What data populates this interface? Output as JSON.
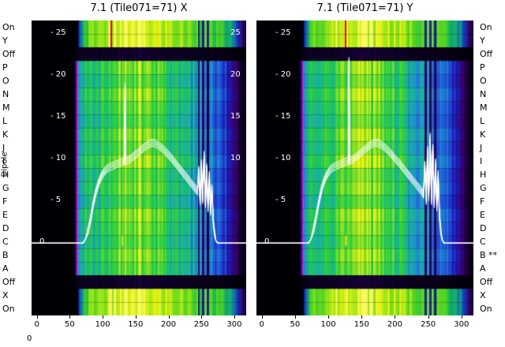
{
  "figure": {
    "background": "#ffffff",
    "left_axis_label": "Dipole",
    "bottom_left_tick": "0",
    "text_color": "#000000",
    "line_color": "#ffffff"
  },
  "row_labels_left": [
    "On",
    "Y",
    "Off",
    "P",
    "O",
    "N",
    "M",
    "L",
    "K",
    "J",
    "I",
    "H",
    "G",
    "F",
    "E",
    "D",
    "C",
    "B",
    "A",
    "Off",
    "X",
    "On"
  ],
  "row_labels_right": [
    "On",
    "Y",
    "Off",
    "P",
    "O",
    "N",
    "M",
    "L",
    "K",
    "J",
    "I",
    "H",
    "G",
    "F",
    "E",
    "D",
    "C",
    "B **",
    "A",
    "Off",
    "X",
    "On"
  ],
  "chart_common": {
    "chan_range": [
      -8,
      318
    ],
    "xticks": [
      0,
      50,
      100,
      150,
      200,
      250,
      300
    ],
    "inner_yticks": [
      25,
      20,
      15,
      10,
      5
    ],
    "right_yticks": [
      25,
      20,
      15,
      10
    ],
    "zero_label": "0",
    "value_axis": {
      "min": 0,
      "max": 25
    },
    "row_kinds": [
      "band",
      "band",
      "off",
      "body",
      "body",
      "body",
      "body",
      "body",
      "body",
      "body",
      "body",
      "body",
      "body",
      "body",
      "body",
      "body",
      "body",
      "body",
      "body",
      "off",
      "band",
      "band"
    ],
    "row_gain": [
      1.02,
      0.94,
      1.06,
      0.98,
      0.92,
      1.04,
      0.97,
      1.08,
      0.95,
      1.0,
      0.9,
      1.05,
      0.99,
      0.93,
      1.03,
      0.96
    ],
    "body_profile": {
      "x": [
        -8,
        56,
        59,
        62,
        66,
        72,
        80,
        90,
        100,
        110,
        120,
        130,
        140,
        150,
        160,
        170,
        180,
        190,
        200,
        210,
        220,
        230,
        240,
        248,
        256,
        262,
        268,
        275,
        282,
        290,
        298,
        306,
        312,
        318
      ],
      "v": [
        0,
        0,
        0.18,
        0.42,
        0.55,
        0.6,
        0.62,
        0.6,
        0.64,
        0.68,
        0.74,
        0.78,
        0.8,
        0.83,
        0.83,
        0.8,
        0.76,
        0.72,
        0.67,
        0.62,
        0.57,
        0.53,
        0.5,
        0.47,
        0.45,
        0.43,
        0.42,
        0.4,
        0.36,
        0.28,
        0.2,
        0.12,
        0.06,
        0.02
      ]
    },
    "band_profile": {
      "x": [
        -8,
        62,
        66,
        72,
        80,
        90,
        100,
        110,
        120,
        130,
        140,
        150,
        160,
        170,
        180,
        190,
        200,
        210,
        220,
        230,
        240,
        250,
        260,
        270,
        280,
        290,
        298,
        306,
        312,
        318
      ],
      "v": [
        0,
        0,
        0.35,
        0.6,
        0.7,
        0.76,
        0.8,
        0.85,
        0.9,
        0.94,
        0.96,
        0.95,
        0.93,
        0.9,
        0.88,
        0.85,
        0.82,
        0.79,
        0.76,
        0.72,
        0.7,
        0.67,
        0.63,
        0.6,
        0.57,
        0.5,
        0.4,
        0.25,
        0.12,
        0.04
      ]
    },
    "palette_body": [
      [
        0,
        "#000004"
      ],
      [
        0.08,
        "#10002a"
      ],
      [
        0.15,
        "#38006b"
      ],
      [
        0.25,
        "#1c19b0"
      ],
      [
        0.35,
        "#1f4fd8"
      ],
      [
        0.45,
        "#1f8fd0"
      ],
      [
        0.55,
        "#18b49a"
      ],
      [
        0.65,
        "#1ec850"
      ],
      [
        0.75,
        "#3fd435"
      ],
      [
        0.85,
        "#8ae022"
      ],
      [
        0.95,
        "#d8ee1e"
      ],
      [
        1,
        "#f4f410"
      ]
    ],
    "palette_band": [
      [
        0,
        "#000004"
      ],
      [
        0.1,
        "#2a0050"
      ],
      [
        0.2,
        "#2020a0"
      ],
      [
        0.35,
        "#1060c0"
      ],
      [
        0.45,
        "#10a080"
      ],
      [
        0.55,
        "#20c040"
      ],
      [
        0.7,
        "#60d820"
      ],
      [
        0.82,
        "#a8e818"
      ],
      [
        0.92,
        "#e0f010"
      ],
      [
        1,
        "#f8f860"
      ]
    ],
    "dark_columns": [
      246,
      253,
      260
    ],
    "edge_column": {
      "chan": 62,
      "color": "#b830c0"
    }
  },
  "chart_data": [
    {
      "type": "heatmap+line",
      "title": "7.1 (Tile071=71) X",
      "seed": 1,
      "markers": {
        "band_line_chan": 113,
        "band_line_color": "#cc1111",
        "zero_tick_chan": 130,
        "zero_tick_color": "#b8e818"
      },
      "line": {
        "x": [
          -8,
          40,
          70,
          74,
          78,
          82,
          86,
          90,
          94,
          98,
          103,
          108,
          114,
          120,
          126,
          131,
          133,
          134,
          135,
          140,
          146,
          152,
          158,
          164,
          170,
          175,
          180,
          186,
          192,
          198,
          205,
          212,
          219,
          226,
          233,
          239,
          244,
          246,
          248,
          250,
          252,
          254,
          256,
          258,
          260,
          262,
          264,
          266,
          268,
          270,
          272,
          275,
          318
        ],
        "y": [
          0,
          0,
          0,
          0.5,
          1.5,
          3,
          4.8,
          6.2,
          7.2,
          8,
          8.6,
          9,
          9.2,
          9.4,
          9.6,
          9.7,
          9.8,
          18.8,
          9.8,
          10,
          10.3,
          10.7,
          11.1,
          11.5,
          11.8,
          12,
          11.9,
          11.6,
          11.2,
          10.7,
          10.1,
          9.4,
          8.7,
          8,
          7.3,
          6.7,
          6.2,
          8.8,
          4.9,
          9.6,
          5.1,
          10.6,
          4.6,
          9.1,
          4.1,
          8.2,
          3.7,
          6.6,
          2.6,
          1.2,
          0.3,
          0,
          0
        ]
      }
    },
    {
      "type": "heatmap+line",
      "title": "7.1 (Tile071=71) Y",
      "seed": 2,
      "markers": {
        "band_line_chan": 126,
        "band_line_color": "#cc1111",
        "zero_tick_chan": 126,
        "zero_tick_color": "#d8e018"
      },
      "line": {
        "x": [
          -8,
          40,
          70,
          74,
          78,
          82,
          86,
          90,
          94,
          98,
          103,
          108,
          114,
          120,
          126,
          130,
          131,
          132,
          137,
          143,
          149,
          155,
          161,
          167,
          172,
          177,
          182,
          188,
          194,
          200,
          207,
          214,
          221,
          228,
          234,
          240,
          243,
          245,
          247,
          249,
          251,
          253,
          255,
          257,
          259,
          261,
          263,
          265,
          267,
          269,
          271,
          274,
          318
        ],
        "y": [
          0,
          0,
          0,
          0.5,
          1.7,
          3.3,
          5,
          6.5,
          7.5,
          8.2,
          8.8,
          9.1,
          9.3,
          9.5,
          9.7,
          9.8,
          21.8,
          9.8,
          10,
          10.4,
          10.8,
          11.2,
          11.6,
          11.9,
          12,
          11.9,
          11.6,
          11.2,
          10.7,
          10.1,
          9.5,
          8.8,
          8.1,
          7.4,
          6.8,
          6.2,
          5.8,
          9.4,
          5,
          11.2,
          5.4,
          12.8,
          5,
          11.4,
          4.6,
          9.7,
          4.2,
          8.3,
          3.2,
          1.4,
          0.4,
          0,
          0
        ]
      }
    }
  ]
}
